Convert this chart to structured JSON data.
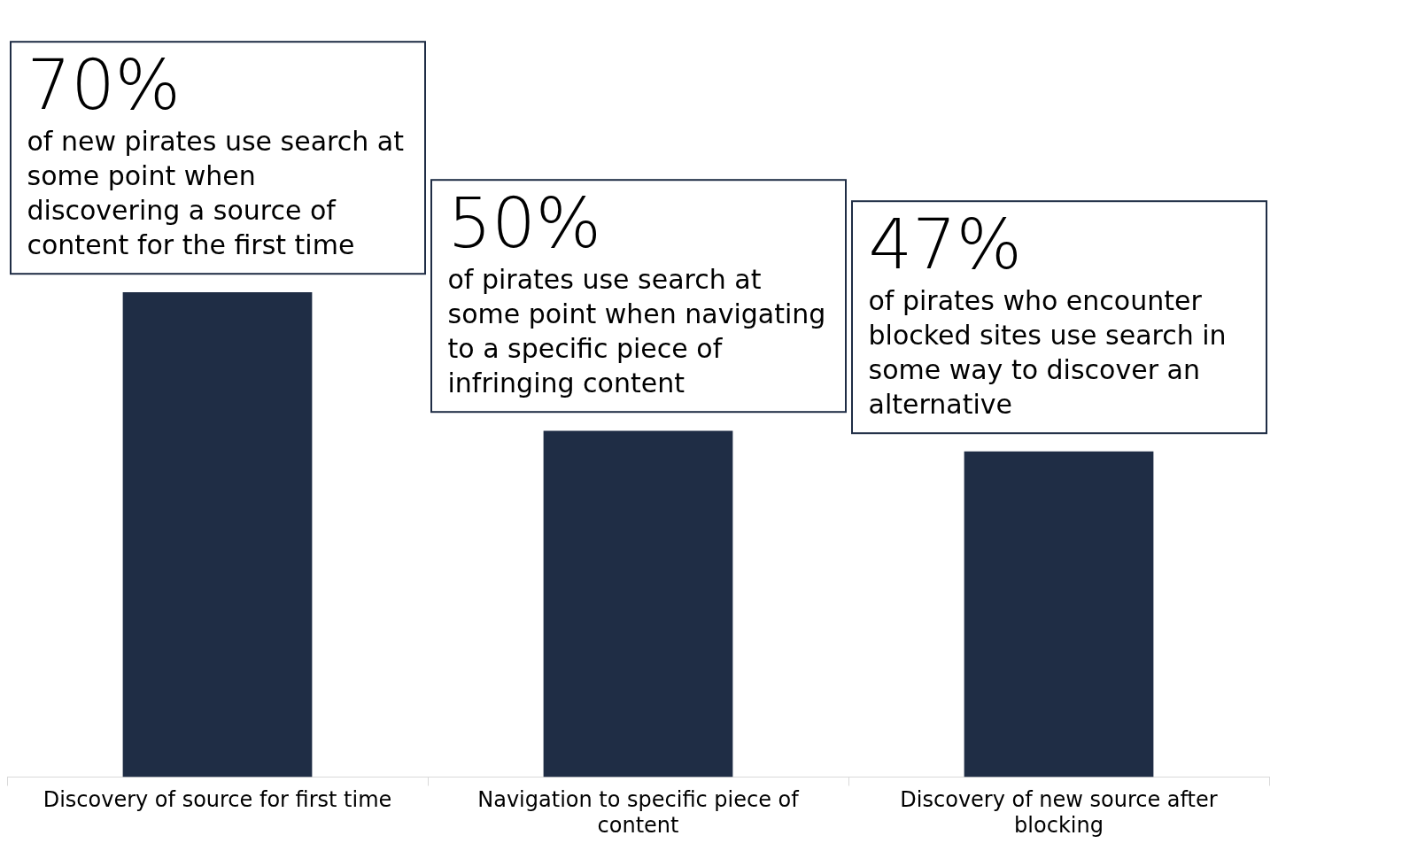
{
  "chart_data": {
    "type": "bar",
    "categories": [
      "Discovery of source for first time",
      "Navigation to specific piece of content",
      "Discovery of new source after blocking"
    ],
    "values": [
      70,
      50,
      47
    ],
    "color": "#1f2d45",
    "value_labels": [
      "70%",
      "50%",
      "47%"
    ],
    "annotations": [
      "of new pirates use search at some point when discovering a source of content for the first time",
      "of pirates use search at some point when navigating to a specific piece of infringing content",
      "of pirates who encounter blocked sites use search in some way to discover an alternative"
    ]
  }
}
